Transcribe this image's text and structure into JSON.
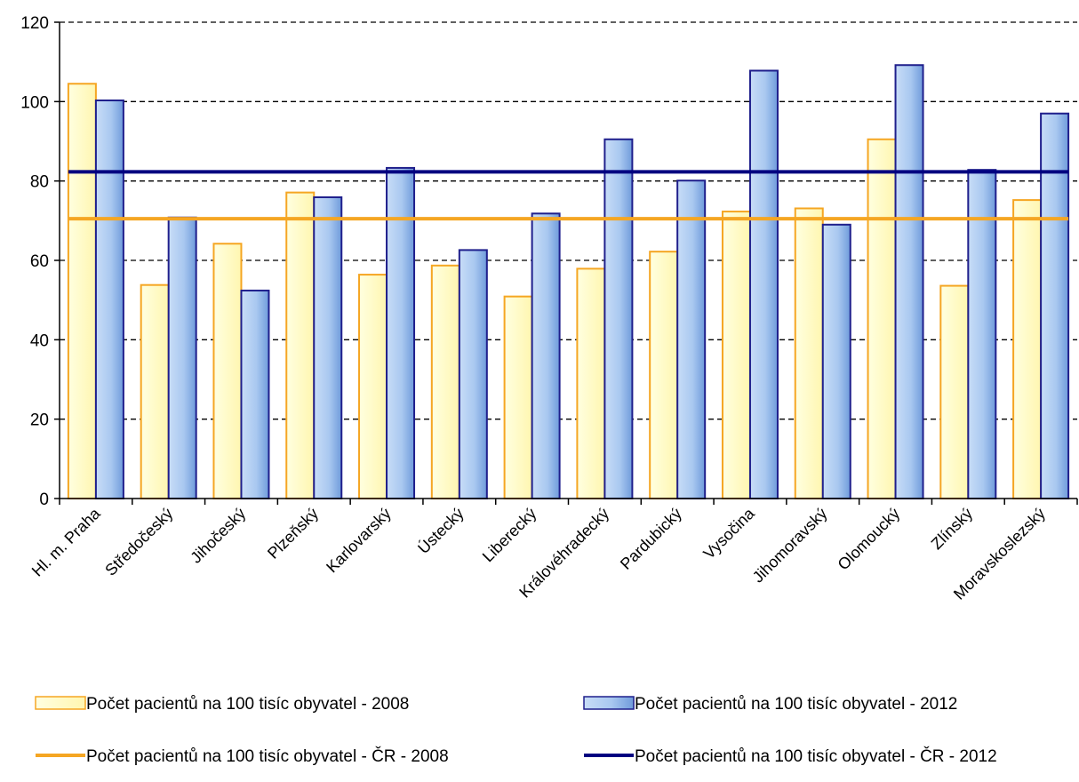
{
  "chart_data": {
    "type": "bar",
    "title": "",
    "xlabel": "",
    "ylabel": "",
    "ylim": [
      0,
      120
    ],
    "yticks": [
      0,
      20,
      40,
      60,
      80,
      100,
      120
    ],
    "grid": "horizontal dashed",
    "legend_position": "bottom",
    "categories": [
      "Hl. m. Praha",
      "Středočeský",
      "Jihočeský",
      "Plzeňský",
      "Karlovarský",
      "Ústecký",
      "Liberecký",
      "Královéhradecký",
      "Pardubický",
      "Vysočina",
      "Jihomoravský",
      "Olomoucký",
      "Zlínský",
      "Moravskoslezský"
    ],
    "series": [
      {
        "name": "Počet pacientů na 100 tisíc obyvatel - 2008",
        "kind": "bar",
        "fill": "#FFFFCC",
        "stroke": "#F5A623",
        "values": [
          104.5,
          53.8,
          64.2,
          77.1,
          56.4,
          58.7,
          50.9,
          57.9,
          62.2,
          72.3,
          73.1,
          90.5,
          53.6,
          75.2
        ]
      },
      {
        "name": "Počet pacientů na 100 tisíc obyvatel - 2012",
        "kind": "bar",
        "fill": "#A9C8F0",
        "stroke": "#1F1F8C",
        "values": [
          100.3,
          70.8,
          52.4,
          75.9,
          83.3,
          62.6,
          71.8,
          90.5,
          80.1,
          107.8,
          69.0,
          109.2,
          82.8,
          97.0
        ]
      },
      {
        "name": "Počet pacientů na 100 tisíc obyvatel - ČR - 2008",
        "kind": "line",
        "color": "#F5A623",
        "value": 70.5
      },
      {
        "name": "Počet pacientů na 100 tisíc obyvatel - ČR - 2012",
        "kind": "line",
        "color": "#000080",
        "value": 82.3
      }
    ]
  }
}
